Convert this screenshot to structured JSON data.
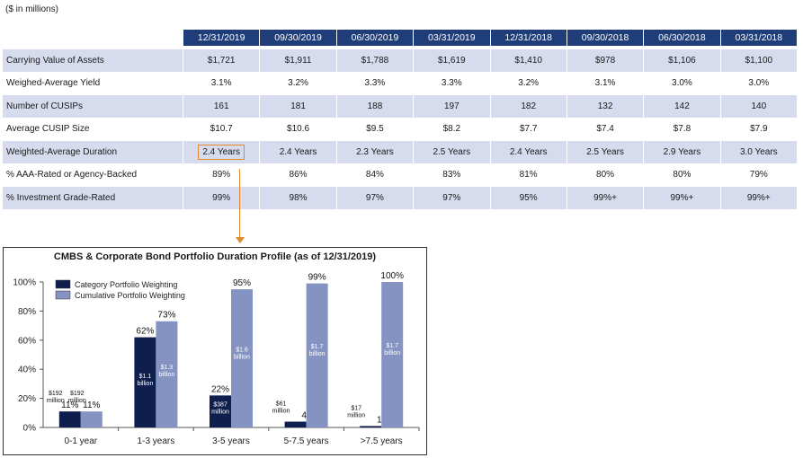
{
  "units_note": "($ in millions)",
  "table": {
    "columns": [
      "12/31/2019",
      "09/30/2019",
      "06/30/2019",
      "03/31/2019",
      "12/31/2018",
      "09/30/2018",
      "06/30/2018",
      "03/31/2018"
    ],
    "rows": [
      {
        "label": "Carrying Value of Assets",
        "values": [
          "$1,721",
          "$1,911",
          "$1,788",
          "$1,619",
          "$1,410",
          "$978",
          "$1,106",
          "$1,100"
        ]
      },
      {
        "label": "Weighed-Average Yield",
        "values": [
          "3.1%",
          "3.2%",
          "3.3%",
          "3.3%",
          "3.2%",
          "3.1%",
          "3.0%",
          "3.0%"
        ]
      },
      {
        "label": "Number of CUSIPs",
        "values": [
          "161",
          "181",
          "188",
          "197",
          "182",
          "132",
          "142",
          "140"
        ]
      },
      {
        "label": "Average CUSIP Size",
        "values": [
          "$10.7",
          "$10.6",
          "$9.5",
          "$8.2",
          "$7.7",
          "$7.4",
          "$7.8",
          "$7.9"
        ]
      },
      {
        "label": "Weighted-Average Duration",
        "values": [
          "2.4 Years",
          "2.4 Years",
          "2.3 Years",
          "2.5 Years",
          "2.4 Years",
          "2.5 Years",
          "2.9 Years",
          "3.0 Years"
        ]
      },
      {
        "label": "% AAA-Rated or Agency-Backed",
        "values": [
          "89%",
          "86%",
          "84%",
          "83%",
          "81%",
          "80%",
          "80%",
          "79%"
        ]
      },
      {
        "label": "% Investment Grade-Rated",
        "values": [
          "99%",
          "98%",
          "97%",
          "97%",
          "95%",
          "99%+",
          "99%+",
          "99%+"
        ]
      }
    ]
  },
  "chart_data": {
    "type": "bar",
    "title": "CMBS & Corporate Bond Portfolio Duration Profile (as of 12/31/2019)",
    "categories": [
      "0-1 year",
      "1-3 years",
      "3-5 years",
      "5-7.5 years",
      ">7.5 years"
    ],
    "series": [
      {
        "name": "Category Portfolio Weighting",
        "values": [
          11,
          62,
          22,
          4,
          1
        ],
        "labels": [
          "11%",
          "62%",
          "22%",
          "4%",
          "1%"
        ],
        "inner": [
          [
            "$192",
            "million"
          ],
          [
            "$1.1",
            "billion"
          ],
          [
            "$387",
            "million"
          ],
          [
            "$61",
            "million"
          ],
          [
            "$17",
            "million"
          ]
        ],
        "color": "#0f1f4d"
      },
      {
        "name": "Cumulative Portfolio Weighting",
        "values": [
          11,
          73,
          95,
          99,
          100
        ],
        "labels": [
          "11%",
          "73%",
          "95%",
          "99%",
          "100%"
        ],
        "inner": [
          [
            "$192",
            "million"
          ],
          [
            "$1.3",
            "billion"
          ],
          [
            "$1.6",
            "billion"
          ],
          [
            "$1.7",
            "billion"
          ],
          [
            "$1.7",
            "billion"
          ]
        ],
        "color": "#8593c2"
      }
    ],
    "ylim": [
      0,
      100
    ],
    "yticks": [
      "0%",
      "20%",
      "40%",
      "60%",
      "80%",
      "100%"
    ],
    "legend": "top-left"
  }
}
